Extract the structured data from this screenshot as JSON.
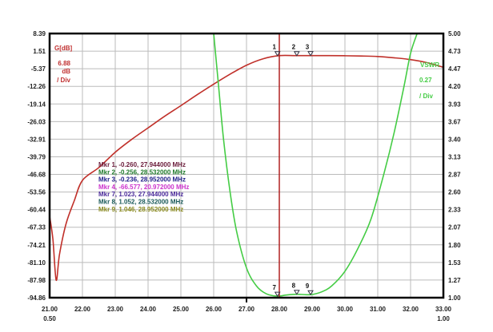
{
  "chart_data": {
    "type": "line",
    "xlim": [
      21,
      33
    ],
    "x_ticks": [
      "21.00",
      "22.00",
      "23.00",
      "24.00",
      "25.00",
      "26.00",
      "27.00",
      "28.00",
      "29.00",
      "30.00",
      "31.00",
      "32.00",
      "33.00"
    ],
    "x_sub_left": "0.50",
    "x_sub_right": "1.00",
    "left_axis": {
      "label": "G[dB]",
      "scale": "6.88",
      "unit": "dB",
      "per": "/ Div",
      "ylim": [
        -94.86,
        8.39
      ],
      "ticks": [
        "8.39",
        "1.51",
        "-5.37",
        "-12.26",
        "-19.14",
        "-26.03",
        "-32.91",
        "-39.79",
        "-46.68",
        "-53.56",
        "-60.44",
        "-67.33",
        "-74.21",
        "-81.10",
        "-87.98",
        "-94.86"
      ]
    },
    "right_axis": {
      "label": "VSWR",
      "scale": "0.27",
      "per": "/ Div",
      "ylim": [
        1.0,
        5.0
      ],
      "ticks": [
        "5.00",
        "4.73",
        "4.47",
        "4.20",
        "3.93",
        "3.67",
        "3.40",
        "3.13",
        "2.87",
        "2.60",
        "2.33",
        "2.07",
        "1.80",
        "1.53",
        "1.27",
        "1.00"
      ]
    },
    "grid": true,
    "series": [
      {
        "name": "G[dB]",
        "axis": "left",
        "color": "#c0302a",
        "x": [
          21.0,
          21.1,
          21.2,
          21.3,
          21.5,
          21.75,
          22.0,
          22.5,
          23.0,
          23.5,
          24.0,
          24.5,
          25.0,
          25.5,
          26.0,
          26.5,
          27.0,
          27.5,
          28.0,
          28.5,
          29.0,
          29.5,
          30.0,
          30.5,
          31.0,
          31.5,
          32.0,
          32.5,
          33.0
        ],
        "y": [
          -63,
          -72,
          -88,
          -78,
          -66,
          -57,
          -49,
          -44,
          -38,
          -33,
          -28.5,
          -24,
          -19.8,
          -15.5,
          -11.4,
          -7.5,
          -4.0,
          -1.5,
          -0.26,
          -0.256,
          -0.236,
          -0.25,
          -0.3,
          -0.4,
          -0.6,
          -1.1,
          -1.8,
          -3.0,
          -4.8
        ]
      },
      {
        "name": "VSWR",
        "axis": "right",
        "color": "#44cc44",
        "x": [
          26.0,
          26.15,
          26.3,
          26.5,
          26.7,
          27.0,
          27.3,
          27.6,
          27.944,
          28.2,
          28.532,
          28.952,
          29.3,
          29.6,
          30.0,
          30.4,
          30.8,
          31.2,
          31.5,
          31.8,
          32.0,
          32.2
        ],
        "y": [
          5.0,
          4.2,
          3.4,
          2.6,
          2.0,
          1.45,
          1.18,
          1.06,
          1.023,
          1.04,
          1.052,
          1.046,
          1.09,
          1.18,
          1.4,
          1.75,
          2.2,
          2.9,
          3.5,
          4.2,
          4.7,
          5.0
        ]
      }
    ],
    "marker_line_x": 28.0,
    "markers": [
      {
        "id": "1",
        "x": 27.944,
        "y": -0.26,
        "axis": "left"
      },
      {
        "id": "2",
        "x": 28.532,
        "y": -0.256,
        "axis": "left"
      },
      {
        "id": "3",
        "x": 28.952,
        "y": -0.236,
        "axis": "left"
      },
      {
        "id": "7",
        "x": 27.944,
        "y": 1.023,
        "axis": "right"
      },
      {
        "id": "8",
        "x": 28.532,
        "y": 1.052,
        "axis": "right"
      },
      {
        "id": "9",
        "x": 28.952,
        "y": 1.046,
        "axis": "right"
      }
    ],
    "legend": [
      {
        "text": "Mkr 1, -0.260, 27.944000 MHz",
        "color": "#6a1b3a"
      },
      {
        "text": "Mkr 2, -0.256, 28.532000 MHz",
        "color": "#1f7a2a"
      },
      {
        "text": "Mkr 3, -0.236, 28.952000 MHz",
        "color": "#22228a"
      },
      {
        "text": "Mkr 4, -66.577, 20.972000 MHz",
        "color": "#cc33cc"
      },
      {
        "text": "Mkr 7, 1.023, 27.944000 MHz",
        "color": "#4a2a9a"
      },
      {
        "text": "Mkr 8, 1.052, 28.532000 MHz",
        "color": "#1a5a5a"
      },
      {
        "text": "Mkr 9, 1.046, 28.952000 MHz",
        "color": "#8a8a20"
      }
    ]
  }
}
